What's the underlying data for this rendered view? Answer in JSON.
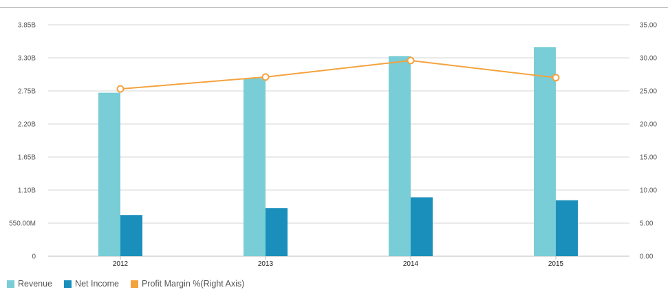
{
  "chart_data": {
    "type": "bar",
    "categories": [
      "2012",
      "2013",
      "2014",
      "2015"
    ],
    "series": [
      {
        "name": "Revenue",
        "kind": "bar",
        "axis": "left",
        "color": "#78cdd7",
        "values": [
          2.72,
          2.96,
          3.33,
          3.48
        ]
      },
      {
        "name": "Net Income",
        "kind": "bar",
        "axis": "left",
        "color": "#1a8fbb",
        "values": [
          0.685,
          0.8,
          0.98,
          0.93
        ]
      },
      {
        "name": "Profit Margin %(Right Axis)",
        "kind": "line",
        "axis": "right",
        "color": "#f4a23d",
        "values": [
          25.3,
          27.1,
          29.6,
          27.0
        ]
      }
    ],
    "y_left": {
      "ticks": [
        0,
        0.55,
        1.1,
        1.65,
        2.2,
        2.75,
        3.3,
        3.85
      ],
      "tick_labels": [
        "0",
        "550.00M",
        "1.10B",
        "1.65B",
        "2.20B",
        "2.75B",
        "3.30B",
        "3.85B"
      ],
      "ylim": [
        0,
        3.85
      ]
    },
    "y_right": {
      "ticks": [
        0,
        5,
        10,
        15,
        20,
        25,
        30,
        35
      ],
      "tick_labels": [
        "0.00",
        "5.00",
        "10.00",
        "15.00",
        "20.00",
        "25.00",
        "30.00",
        "35.00"
      ],
      "ylim": [
        0,
        35
      ]
    },
    "title": "",
    "xlabel": "",
    "ylabel": "",
    "grid": true,
    "legend_position": "bottom-left"
  }
}
